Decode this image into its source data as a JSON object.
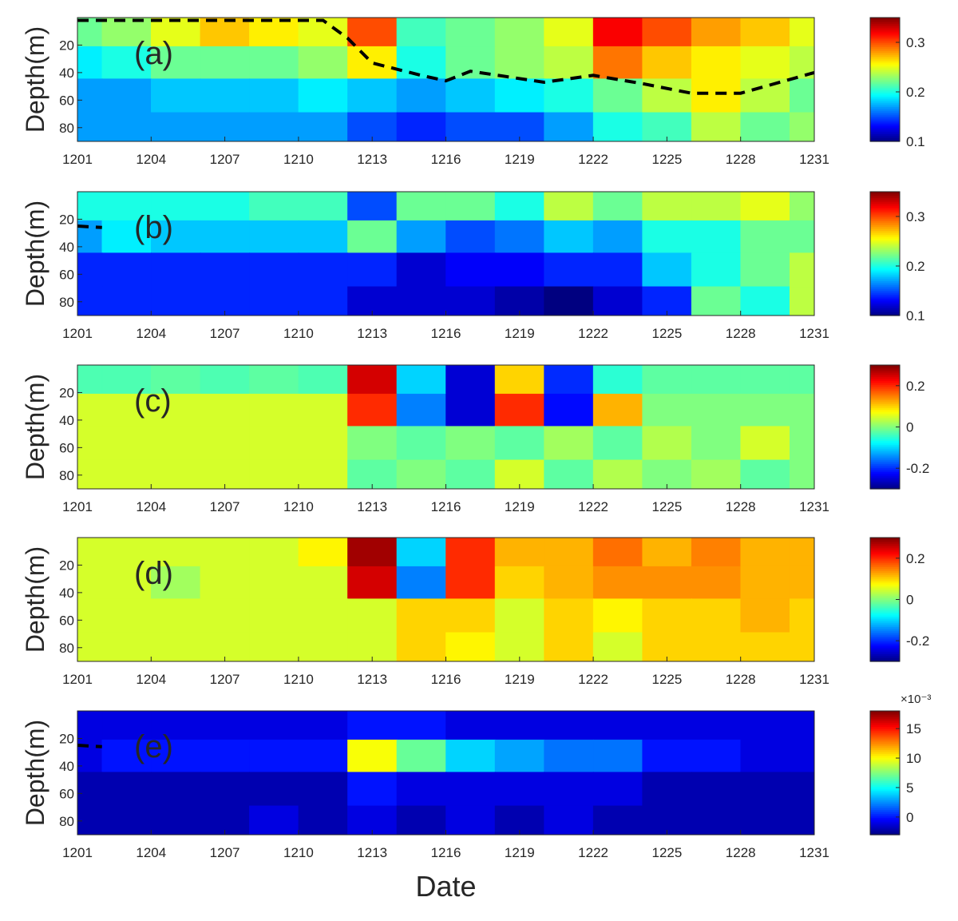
{
  "chart_data": [
    {
      "type": "heatmap",
      "label": "(a)",
      "ylabel": "Depth(m)",
      "colormap": "jet",
      "x": [
        1201,
        1203,
        1205,
        1207,
        1209,
        1211,
        1213,
        1215,
        1217,
        1219,
        1221,
        1223,
        1225,
        1227,
        1229,
        1231
      ],
      "y": [
        10,
        32,
        57,
        81
      ],
      "values": [
        [
          0.22,
          0.23,
          0.25,
          0.27,
          0.26,
          0.25,
          0.3,
          0.21,
          0.22,
          0.23,
          0.25,
          0.32,
          0.3,
          0.28,
          0.27,
          0.25
        ],
        [
          0.19,
          0.2,
          0.22,
          0.22,
          0.22,
          0.23,
          0.26,
          0.2,
          0.22,
          0.23,
          0.24,
          0.29,
          0.27,
          0.26,
          0.25,
          0.24
        ],
        [
          0.17,
          0.17,
          0.18,
          0.18,
          0.18,
          0.19,
          0.18,
          0.17,
          0.18,
          0.19,
          0.2,
          0.22,
          0.24,
          0.26,
          0.24,
          0.22
        ],
        [
          0.17,
          0.17,
          0.17,
          0.17,
          0.17,
          0.17,
          0.15,
          0.14,
          0.15,
          0.15,
          0.17,
          0.2,
          0.21,
          0.24,
          0.22,
          0.23
        ]
      ],
      "xlim": [
        1201,
        1231
      ],
      "xticks": [
        1201,
        1204,
        1207,
        1210,
        1213,
        1216,
        1219,
        1222,
        1225,
        1228,
        1231
      ],
      "ylim": [
        0,
        90
      ],
      "yticks": [
        20,
        40,
        60,
        80
      ],
      "y_reversed": true,
      "clim": [
        0.1,
        0.35
      ],
      "cticks": [
        0.1,
        0.2,
        0.3
      ],
      "mld": {
        "x": [
          1201,
          1211,
          1212,
          1213,
          1215,
          1216,
          1217,
          1220,
          1222,
          1224,
          1226,
          1228,
          1231
        ],
        "y": [
          2,
          2,
          15,
          33,
          42,
          46,
          39,
          47,
          42,
          48,
          55,
          55,
          40
        ]
      }
    },
    {
      "type": "heatmap",
      "label": "(b)",
      "ylabel": "Depth(m)",
      "colormap": "jet",
      "x": [
        1201,
        1203,
        1205,
        1207,
        1209,
        1211,
        1213,
        1215,
        1217,
        1219,
        1221,
        1223,
        1225,
        1227,
        1229,
        1231
      ],
      "y": [
        10,
        32,
        57,
        81
      ],
      "values": [
        [
          0.2,
          0.2,
          0.2,
          0.2,
          0.21,
          0.21,
          0.15,
          0.22,
          0.22,
          0.2,
          0.24,
          0.22,
          0.24,
          0.24,
          0.25,
          0.23
        ],
        [
          0.17,
          0.19,
          0.18,
          0.18,
          0.18,
          0.18,
          0.22,
          0.17,
          0.15,
          0.16,
          0.18,
          0.17,
          0.2,
          0.2,
          0.22,
          0.22
        ],
        [
          0.14,
          0.14,
          0.14,
          0.14,
          0.14,
          0.14,
          0.14,
          0.12,
          0.13,
          0.13,
          0.14,
          0.14,
          0.18,
          0.2,
          0.22,
          0.24
        ],
        [
          0.14,
          0.14,
          0.14,
          0.14,
          0.14,
          0.14,
          0.12,
          0.12,
          0.12,
          0.11,
          0.1,
          0.12,
          0.14,
          0.22,
          0.2,
          0.24
        ]
      ],
      "xlim": [
        1201,
        1231
      ],
      "xticks": [
        1201,
        1204,
        1207,
        1210,
        1213,
        1216,
        1219,
        1222,
        1225,
        1228,
        1231
      ],
      "ylim": [
        0,
        90
      ],
      "yticks": [
        20,
        40,
        60,
        80
      ],
      "y_reversed": true,
      "clim": [
        0.1,
        0.35
      ],
      "cticks": [
        0.1,
        0.2,
        0.3
      ],
      "mld": {
        "x": [
          1201,
          1202
        ],
        "y": [
          25,
          26
        ]
      }
    },
    {
      "type": "heatmap",
      "label": "(c)",
      "ylabel": "Depth(m)",
      "colormap": "jet",
      "x": [
        1201,
        1203,
        1205,
        1207,
        1209,
        1211,
        1213,
        1215,
        1217,
        1219,
        1221,
        1223,
        1225,
        1227,
        1229,
        1231
      ],
      "y": [
        10,
        32,
        57,
        81
      ],
      "values": [
        [
          -0.03,
          -0.03,
          -0.02,
          -0.03,
          -0.02,
          -0.03,
          0.25,
          -0.1,
          -0.25,
          0.1,
          -0.2,
          -0.05,
          -0.02,
          -0.02,
          -0.02,
          -0.02
        ],
        [
          0.05,
          0.05,
          0.05,
          0.05,
          0.05,
          0.05,
          0.2,
          -0.15,
          -0.25,
          0.2,
          -0.22,
          0.12,
          0.0,
          0.0,
          0.0,
          0.0
        ],
        [
          0.05,
          0.05,
          0.05,
          0.05,
          0.05,
          0.05,
          0.0,
          -0.02,
          0.0,
          -0.02,
          0.02,
          -0.02,
          0.03,
          0.0,
          0.05,
          0.0
        ],
        [
          0.05,
          0.05,
          0.05,
          0.05,
          0.05,
          0.05,
          -0.02,
          0.0,
          -0.02,
          0.05,
          -0.02,
          0.03,
          0.0,
          0.02,
          -0.02,
          0.0
        ]
      ],
      "xlim": [
        1201,
        1231
      ],
      "xticks": [
        1201,
        1204,
        1207,
        1210,
        1213,
        1216,
        1219,
        1222,
        1225,
        1228,
        1231
      ],
      "ylim": [
        0,
        90
      ],
      "yticks": [
        20,
        40,
        60,
        80
      ],
      "y_reversed": true,
      "clim": [
        -0.3,
        0.3
      ],
      "cticks": [
        -0.2,
        0,
        0.2
      ]
    },
    {
      "type": "heatmap",
      "label": "(d)",
      "ylabel": "Depth(m)",
      "colormap": "jet",
      "x": [
        1201,
        1203,
        1205,
        1207,
        1209,
        1211,
        1213,
        1215,
        1217,
        1219,
        1221,
        1223,
        1225,
        1227,
        1229,
        1231
      ],
      "y": [
        10,
        32,
        57,
        81
      ],
      "values": [
        [
          0.05,
          0.05,
          0.05,
          0.05,
          0.05,
          0.08,
          0.28,
          -0.1,
          0.2,
          0.12,
          0.12,
          0.16,
          0.12,
          0.15,
          0.12,
          0.12
        ],
        [
          0.05,
          0.05,
          0.02,
          0.05,
          0.05,
          0.05,
          0.25,
          -0.15,
          0.2,
          0.1,
          0.12,
          0.14,
          0.14,
          0.14,
          0.12,
          0.12
        ],
        [
          0.05,
          0.05,
          0.05,
          0.05,
          0.05,
          0.05,
          0.05,
          0.1,
          0.1,
          0.05,
          0.1,
          0.08,
          0.1,
          0.1,
          0.12,
          0.1
        ],
        [
          0.05,
          0.05,
          0.05,
          0.05,
          0.05,
          0.05,
          0.05,
          0.1,
          0.08,
          0.05,
          0.1,
          0.05,
          0.1,
          0.1,
          0.1,
          0.1
        ]
      ],
      "xlim": [
        1201,
        1231
      ],
      "xticks": [
        1201,
        1204,
        1207,
        1210,
        1213,
        1216,
        1219,
        1222,
        1225,
        1228,
        1231
      ],
      "ylim": [
        0,
        90
      ],
      "yticks": [
        20,
        40,
        60,
        80
      ],
      "y_reversed": true,
      "clim": [
        -0.3,
        0.3
      ],
      "cticks": [
        -0.2,
        0,
        0.2
      ]
    },
    {
      "type": "heatmap",
      "label": "(e)",
      "ylabel": "Depth(m)",
      "xlabel": "Date",
      "colormap": "jet",
      "x": [
        1201,
        1203,
        1205,
        1207,
        1209,
        1211,
        1213,
        1215,
        1217,
        1219,
        1221,
        1223,
        1225,
        1227,
        1229,
        1231
      ],
      "y": [
        10,
        32,
        57,
        81
      ],
      "values": [
        [
          -1,
          -1,
          -1,
          -1,
          -1,
          -1,
          0,
          0,
          -1,
          -1,
          -1,
          -1,
          -1,
          -1,
          -1,
          -1
        ],
        [
          -1,
          0,
          0,
          0,
          0,
          0,
          10,
          7,
          4,
          3,
          2,
          2,
          0,
          0,
          -1,
          -1
        ],
        [
          -2,
          -2,
          -2,
          -2,
          -2,
          -2,
          0,
          -1,
          -1,
          -1,
          -1,
          -1,
          -2,
          -2,
          -2,
          -2
        ],
        [
          -2,
          -2,
          -2,
          -2,
          -1,
          -2,
          -1,
          -2,
          -1,
          -2,
          -1,
          -2,
          -2,
          -2,
          -2,
          -2
        ]
      ],
      "xlim": [
        1201,
        1231
      ],
      "xticks": [
        1201,
        1204,
        1207,
        1210,
        1213,
        1216,
        1219,
        1222,
        1225,
        1228,
        1231
      ],
      "ylim": [
        0,
        90
      ],
      "yticks": [
        20,
        40,
        60,
        80
      ],
      "y_reversed": true,
      "clim": [
        -3,
        18
      ],
      "cticks": [
        0,
        5,
        10,
        15
      ],
      "colorbar_scale_label": "×10⁻³",
      "mld": {
        "x": [
          1201,
          1202
        ],
        "y": [
          25,
          26
        ]
      }
    }
  ]
}
